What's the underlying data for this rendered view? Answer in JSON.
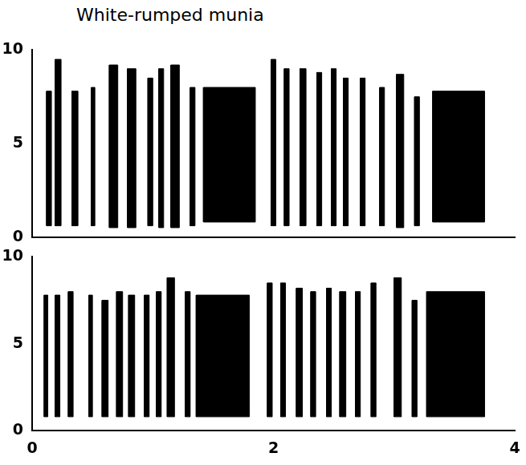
{
  "chart_data": [
    {
      "type": "spectrogram",
      "title": "White-rumped munia",
      "xlim": [
        0,
        4
      ],
      "ylim": [
        0,
        10
      ],
      "yticks": [
        0,
        5,
        10
      ],
      "tick_labels": "y",
      "color": "#000000",
      "syllables": [
        {
          "start": 0.12,
          "end": 0.16,
          "low": 0.6,
          "high": 7.8
        },
        {
          "start": 0.19,
          "end": 0.24,
          "low": 0.6,
          "high": 9.5
        },
        {
          "start": 0.33,
          "end": 0.38,
          "low": 0.6,
          "high": 7.8
        },
        {
          "start": 0.49,
          "end": 0.52,
          "low": 0.6,
          "high": 8.0
        },
        {
          "start": 0.64,
          "end": 0.71,
          "low": 0.5,
          "high": 9.2
        },
        {
          "start": 0.79,
          "end": 0.86,
          "low": 0.5,
          "high": 9.0
        },
        {
          "start": 0.96,
          "end": 1.0,
          "low": 0.6,
          "high": 8.5
        },
        {
          "start": 1.05,
          "end": 1.09,
          "low": 0.5,
          "high": 9.0
        },
        {
          "start": 1.15,
          "end": 1.22,
          "low": 0.5,
          "high": 9.2
        },
        {
          "start": 1.31,
          "end": 1.35,
          "low": 0.6,
          "high": 8.0
        },
        {
          "start": 1.42,
          "end": 1.85,
          "low": 0.8,
          "high": 8.0
        },
        {
          "start": 1.98,
          "end": 2.02,
          "low": 0.6,
          "high": 9.5
        },
        {
          "start": 2.09,
          "end": 2.13,
          "low": 0.6,
          "high": 9.0
        },
        {
          "start": 2.22,
          "end": 2.27,
          "low": 0.6,
          "high": 9.0
        },
        {
          "start": 2.36,
          "end": 2.4,
          "low": 0.6,
          "high": 8.8
        },
        {
          "start": 2.48,
          "end": 2.52,
          "low": 0.6,
          "high": 9.0
        },
        {
          "start": 2.58,
          "end": 2.62,
          "low": 0.6,
          "high": 8.5
        },
        {
          "start": 2.72,
          "end": 2.76,
          "low": 0.6,
          "high": 8.5
        },
        {
          "start": 2.88,
          "end": 2.92,
          "low": 0.6,
          "high": 8.0
        },
        {
          "start": 3.02,
          "end": 3.08,
          "low": 0.5,
          "high": 8.7
        },
        {
          "start": 3.17,
          "end": 3.21,
          "low": 0.6,
          "high": 7.5
        },
        {
          "start": 3.32,
          "end": 3.75,
          "low": 0.8,
          "high": 7.8
        }
      ]
    },
    {
      "type": "spectrogram",
      "xlim": [
        0,
        4
      ],
      "ylim": [
        0,
        10
      ],
      "xticks": [
        0,
        2,
        4
      ],
      "yticks": [
        0,
        5,
        10
      ],
      "color": "#000000",
      "syllables": [
        {
          "start": 0.1,
          "end": 0.13,
          "low": 0.8,
          "high": 7.8
        },
        {
          "start": 0.19,
          "end": 0.23,
          "low": 0.8,
          "high": 7.8
        },
        {
          "start": 0.3,
          "end": 0.34,
          "low": 0.8,
          "high": 8.0
        },
        {
          "start": 0.47,
          "end": 0.5,
          "low": 0.8,
          "high": 7.8
        },
        {
          "start": 0.58,
          "end": 0.63,
          "low": 0.8,
          "high": 7.5
        },
        {
          "start": 0.7,
          "end": 0.75,
          "low": 0.8,
          "high": 8.0
        },
        {
          "start": 0.8,
          "end": 0.85,
          "low": 0.8,
          "high": 7.8
        },
        {
          "start": 0.93,
          "end": 0.97,
          "low": 0.8,
          "high": 7.8
        },
        {
          "start": 1.03,
          "end": 1.07,
          "low": 0.8,
          "high": 8.0
        },
        {
          "start": 1.12,
          "end": 1.18,
          "low": 0.8,
          "high": 8.8
        },
        {
          "start": 1.27,
          "end": 1.31,
          "low": 0.8,
          "high": 8.0
        },
        {
          "start": 1.36,
          "end": 1.8,
          "low": 0.8,
          "high": 7.8
        },
        {
          "start": 1.95,
          "end": 1.99,
          "low": 0.8,
          "high": 8.5
        },
        {
          "start": 2.06,
          "end": 2.1,
          "low": 0.8,
          "high": 8.5
        },
        {
          "start": 2.19,
          "end": 2.24,
          "low": 0.8,
          "high": 8.2
        },
        {
          "start": 2.31,
          "end": 2.35,
          "low": 0.8,
          "high": 8.0
        },
        {
          "start": 2.44,
          "end": 2.48,
          "low": 0.8,
          "high": 8.2
        },
        {
          "start": 2.55,
          "end": 2.6,
          "low": 0.8,
          "high": 8.0
        },
        {
          "start": 2.68,
          "end": 2.72,
          "low": 0.8,
          "high": 8.0
        },
        {
          "start": 2.81,
          "end": 2.85,
          "low": 0.8,
          "high": 8.5
        },
        {
          "start": 3.0,
          "end": 3.06,
          "low": 0.8,
          "high": 8.8
        },
        {
          "start": 3.15,
          "end": 3.19,
          "low": 0.8,
          "high": 7.5
        },
        {
          "start": 3.27,
          "end": 3.75,
          "low": 0.8,
          "high": 8.0
        }
      ]
    }
  ]
}
